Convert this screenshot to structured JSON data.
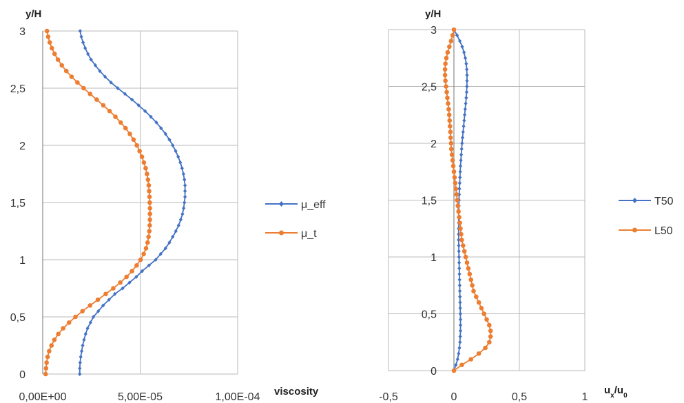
{
  "colors": {
    "series1": "#4472C4",
    "series2": "#ED7D31",
    "grid": "#b8b8b8"
  },
  "chart_data": [
    {
      "type": "line",
      "ylabel": "y/H",
      "xlabel": "viscosity",
      "xlim": [
        0,
        0.0001
      ],
      "ylim": [
        0,
        3
      ],
      "xticks": [
        0,
        5e-05,
        0.0001
      ],
      "xtick_labels": [
        "0,00E+00",
        "5,00E-05",
        "1,00E-04"
      ],
      "yticks": [
        0,
        0.5,
        1,
        1.5,
        2,
        2.5,
        3
      ],
      "ytick_labels": [
        "0",
        "0,5",
        "1",
        "1,5",
        "2",
        "2,5",
        "3"
      ],
      "grid": true,
      "legend": "right",
      "series": [
        {
          "name": "μ_eff",
          "color": "#4472C4",
          "marker": "diamond",
          "points": [
            [
              1.9e-05,
              0.0
            ],
            [
              1.9e-05,
              0.05
            ],
            [
              1.92e-05,
              0.1
            ],
            [
              1.95e-05,
              0.15
            ],
            [
              2e-05,
              0.2
            ],
            [
              2.05e-05,
              0.25
            ],
            [
              2.12e-05,
              0.3
            ],
            [
              2.2e-05,
              0.35
            ],
            [
              2.3e-05,
              0.4
            ],
            [
              2.45e-05,
              0.45
            ],
            [
              2.6e-05,
              0.5
            ],
            [
              2.85e-05,
              0.55
            ],
            [
              3.1e-05,
              0.6
            ],
            [
              3.4e-05,
              0.65
            ],
            [
              3.7e-05,
              0.7
            ],
            [
              4.1e-05,
              0.75
            ],
            [
              4.45e-05,
              0.8
            ],
            [
              4.8e-05,
              0.85
            ],
            [
              5.1e-05,
              0.9
            ],
            [
              5.45e-05,
              0.95
            ],
            [
              5.8e-05,
              1.0
            ],
            [
              6.05e-05,
              1.05
            ],
            [
              6.3e-05,
              1.1
            ],
            [
              6.5e-05,
              1.15
            ],
            [
              6.67e-05,
              1.2
            ],
            [
              6.83e-05,
              1.25
            ],
            [
              6.97e-05,
              1.3
            ],
            [
              7.08e-05,
              1.35
            ],
            [
              7.17e-05,
              1.4
            ],
            [
              7.23e-05,
              1.45
            ],
            [
              7.27e-05,
              1.5
            ],
            [
              7.3e-05,
              1.55
            ],
            [
              7.3e-05,
              1.6
            ],
            [
              7.3e-05,
              1.65
            ],
            [
              7.27e-05,
              1.7
            ],
            [
              7.22e-05,
              1.75
            ],
            [
              7.15e-05,
              1.8
            ],
            [
              7.06e-05,
              1.85
            ],
            [
              6.95e-05,
              1.9
            ],
            [
              6.82e-05,
              1.95
            ],
            [
              6.67e-05,
              2.0
            ],
            [
              6.5e-05,
              2.05
            ],
            [
              6.3e-05,
              2.1
            ],
            [
              6.07e-05,
              2.15
            ],
            [
              5.83e-05,
              2.2
            ],
            [
              5.55e-05,
              2.25
            ],
            [
              5.25e-05,
              2.3
            ],
            [
              4.92e-05,
              2.35
            ],
            [
              4.58e-05,
              2.4
            ],
            [
              4.22e-05,
              2.45
            ],
            [
              3.85e-05,
              2.5
            ],
            [
              3.5e-05,
              2.55
            ],
            [
              3.2e-05,
              2.6
            ],
            [
              2.93e-05,
              2.65
            ],
            [
              2.7e-05,
              2.7
            ],
            [
              2.48e-05,
              2.75
            ],
            [
              2.32e-05,
              2.8
            ],
            [
              2.18e-05,
              2.85
            ],
            [
              2.07e-05,
              2.9
            ],
            [
              1.98e-05,
              2.95
            ],
            [
              1.92e-05,
              3.0
            ]
          ]
        },
        {
          "name": "μ_t",
          "color": "#ED7D31",
          "marker": "circle",
          "points": [
            [
              1.5e-06,
              0.0
            ],
            [
              1.7e-06,
              0.05
            ],
            [
              2e-06,
              0.1
            ],
            [
              2.5e-06,
              0.15
            ],
            [
              3.3e-06,
              0.2
            ],
            [
              4.5e-06,
              0.25
            ],
            [
              6e-06,
              0.3
            ],
            [
              8e-06,
              0.35
            ],
            [
              1.05e-05,
              0.4
            ],
            [
              1.35e-05,
              0.45
            ],
            [
              1.68e-05,
              0.5
            ],
            [
              2.04e-05,
              0.55
            ],
            [
              2.43e-05,
              0.6
            ],
            [
              2.83e-05,
              0.65
            ],
            [
              3.23e-05,
              0.7
            ],
            [
              3.62e-05,
              0.75
            ],
            [
              3.98e-05,
              0.8
            ],
            [
              4.3e-05,
              0.85
            ],
            [
              4.58e-05,
              0.9
            ],
            [
              4.82e-05,
              0.95
            ],
            [
              5.02e-05,
              1.0
            ],
            [
              5.18e-05,
              1.05
            ],
            [
              5.3e-05,
              1.1
            ],
            [
              5.38e-05,
              1.15
            ],
            [
              5.43e-05,
              1.2
            ],
            [
              5.47e-05,
              1.25
            ],
            [
              5.49e-05,
              1.3
            ],
            [
              5.5e-05,
              1.35
            ],
            [
              5.5e-05,
              1.4
            ],
            [
              5.5e-05,
              1.45
            ],
            [
              5.49e-05,
              1.5
            ],
            [
              5.48e-05,
              1.55
            ],
            [
              5.46e-05,
              1.6
            ],
            [
              5.44e-05,
              1.65
            ],
            [
              5.4e-05,
              1.7
            ],
            [
              5.35e-05,
              1.75
            ],
            [
              5.28e-05,
              1.8
            ],
            [
              5.19e-05,
              1.85
            ],
            [
              5.09e-05,
              1.9
            ],
            [
              4.97e-05,
              1.95
            ],
            [
              4.83e-05,
              2.0
            ],
            [
              4.66e-05,
              2.05
            ],
            [
              4.47e-05,
              2.1
            ],
            [
              4.25e-05,
              2.15
            ],
            [
              4e-05,
              2.2
            ],
            [
              3.73e-05,
              2.25
            ],
            [
              3.43e-05,
              2.3
            ],
            [
              3.11e-05,
              2.35
            ],
            [
              2.77e-05,
              2.4
            ],
            [
              2.43e-05,
              2.45
            ],
            [
              2.1e-05,
              2.5
            ],
            [
              1.78e-05,
              2.55
            ],
            [
              1.48e-05,
              2.6
            ],
            [
              1.21e-05,
              2.65
            ],
            [
              9.8e-06,
              2.7
            ],
            [
              7.8e-06,
              2.75
            ],
            [
              6.1e-06,
              2.8
            ],
            [
              4.7e-06,
              2.85
            ],
            [
              3.6e-06,
              2.9
            ],
            [
              2.8e-06,
              2.95
            ],
            [
              2.2e-06,
              3.0
            ]
          ]
        }
      ]
    },
    {
      "type": "line",
      "ylabel": "y/H",
      "xlabel": "u",
      "xlabel_sub": "x",
      "xlabel_denom": "/u",
      "xlabel_denom_sub": "0",
      "xlim": [
        -0.5,
        1
      ],
      "ylim": [
        0,
        3
      ],
      "xticks": [
        -0.5,
        0,
        0.5,
        1
      ],
      "xtick_labels": [
        "-0,5",
        "0",
        "0,5",
        "1"
      ],
      "yticks": [
        0,
        0.5,
        1,
        1.5,
        2,
        2.5,
        3
      ],
      "ytick_labels": [
        "0",
        "0,5",
        "1",
        "1,5",
        "2",
        "2,5",
        "3"
      ],
      "grid": true,
      "legend": "right",
      "series": [
        {
          "name": "T50",
          "color": "#4472C4",
          "marker": "diamond",
          "points": [
            [
              0.0,
              0.0
            ],
            [
              0.015,
              0.05
            ],
            [
              0.028,
              0.1
            ],
            [
              0.036,
              0.15
            ],
            [
              0.042,
              0.2
            ],
            [
              0.046,
              0.25
            ],
            [
              0.048,
              0.3
            ],
            [
              0.05,
              0.35
            ],
            [
              0.05,
              0.4
            ],
            [
              0.05,
              0.45
            ],
            [
              0.049,
              0.5
            ],
            [
              0.048,
              0.55
            ],
            [
              0.047,
              0.6
            ],
            [
              0.046,
              0.65
            ],
            [
              0.045,
              0.7
            ],
            [
              0.044,
              0.75
            ],
            [
              0.043,
              0.8
            ],
            [
              0.042,
              0.85
            ],
            [
              0.041,
              0.9
            ],
            [
              0.04,
              0.95
            ],
            [
              0.039,
              1.0
            ],
            [
              0.038,
              1.05
            ],
            [
              0.037,
              1.1
            ],
            [
              0.036,
              1.15
            ],
            [
              0.036,
              1.2
            ],
            [
              0.036,
              1.25
            ],
            [
              0.036,
              1.3
            ],
            [
              0.036,
              1.35
            ],
            [
              0.037,
              1.4
            ],
            [
              0.038,
              1.45
            ],
            [
              0.039,
              1.5
            ],
            [
              0.04,
              1.55
            ],
            [
              0.042,
              1.6
            ],
            [
              0.044,
              1.65
            ],
            [
              0.046,
              1.7
            ],
            [
              0.048,
              1.75
            ],
            [
              0.05,
              1.8
            ],
            [
              0.053,
              1.85
            ],
            [
              0.056,
              1.9
            ],
            [
              0.059,
              1.95
            ],
            [
              0.062,
              2.0
            ],
            [
              0.066,
              2.05
            ],
            [
              0.07,
              2.1
            ],
            [
              0.074,
              2.15
            ],
            [
              0.078,
              2.2
            ],
            [
              0.082,
              2.25
            ],
            [
              0.086,
              2.3
            ],
            [
              0.09,
              2.35
            ],
            [
              0.094,
              2.4
            ],
            [
              0.097,
              2.45
            ],
            [
              0.099,
              2.5
            ],
            [
              0.1,
              2.55
            ],
            [
              0.1,
              2.6
            ],
            [
              0.098,
              2.65
            ],
            [
              0.094,
              2.7
            ],
            [
              0.087,
              2.75
            ],
            [
              0.077,
              2.8
            ],
            [
              0.063,
              2.85
            ],
            [
              0.045,
              2.9
            ],
            [
              0.024,
              2.95
            ],
            [
              0.0,
              3.0
            ]
          ]
        },
        {
          "name": "L50",
          "color": "#ED7D31",
          "marker": "circle",
          "points": [
            [
              0.0,
              0.0
            ],
            [
              0.06,
              0.05
            ],
            [
              0.13,
              0.1
            ],
            [
              0.19,
              0.15
            ],
            [
              0.24,
              0.2
            ],
            [
              0.27,
              0.25
            ],
            [
              0.28,
              0.3
            ],
            [
              0.28,
              0.35
            ],
            [
              0.27,
              0.4
            ],
            [
              0.25,
              0.45
            ],
            [
              0.23,
              0.5
            ],
            [
              0.21,
              0.55
            ],
            [
              0.19,
              0.6
            ],
            [
              0.17,
              0.65
            ],
            [
              0.15,
              0.7
            ],
            [
              0.14,
              0.75
            ],
            [
              0.13,
              0.8
            ],
            [
              0.12,
              0.85
            ],
            [
              0.11,
              0.9
            ],
            [
              0.1,
              0.95
            ],
            [
              0.09,
              1.0
            ],
            [
              0.08,
              1.05
            ],
            [
              0.07,
              1.1
            ],
            [
              0.06,
              1.15
            ],
            [
              0.055,
              1.2
            ],
            [
              0.05,
              1.25
            ],
            [
              0.045,
              1.3
            ],
            [
              0.04,
              1.35
            ],
            [
              0.035,
              1.4
            ],
            [
              0.03,
              1.45
            ],
            [
              0.025,
              1.5
            ],
            [
              0.02,
              1.55
            ],
            [
              0.015,
              1.6
            ],
            [
              0.01,
              1.65
            ],
            [
              0.005,
              1.7
            ],
            [
              0.0,
              1.75
            ],
            [
              -0.005,
              1.8
            ],
            [
              -0.01,
              1.85
            ],
            [
              -0.015,
              1.9
            ],
            [
              -0.02,
              1.95
            ],
            [
              -0.022,
              2.0
            ],
            [
              -0.025,
              2.05
            ],
            [
              -0.027,
              2.1
            ],
            [
              -0.03,
              2.15
            ],
            [
              -0.033,
              2.2
            ],
            [
              -0.036,
              2.25
            ],
            [
              -0.04,
              2.3
            ],
            [
              -0.045,
              2.35
            ],
            [
              -0.05,
              2.4
            ],
            [
              -0.055,
              2.45
            ],
            [
              -0.06,
              2.5
            ],
            [
              -0.065,
              2.55
            ],
            [
              -0.068,
              2.6
            ],
            [
              -0.068,
              2.65
            ],
            [
              -0.065,
              2.7
            ],
            [
              -0.058,
              2.75
            ],
            [
              -0.048,
              2.8
            ],
            [
              -0.035,
              2.85
            ],
            [
              -0.022,
              2.9
            ],
            [
              -0.01,
              2.95
            ],
            [
              0.0,
              3.0
            ]
          ]
        }
      ]
    }
  ]
}
